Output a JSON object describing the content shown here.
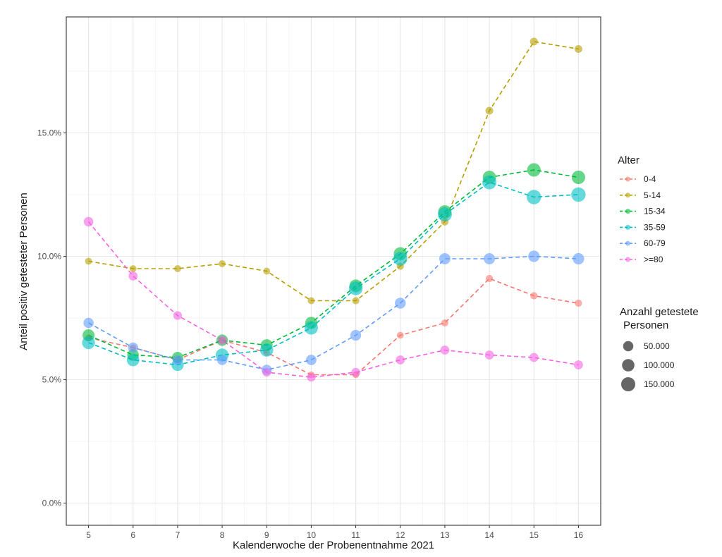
{
  "chart_data": {
    "type": "line",
    "xlabel": "Kalenderwoche der Probenentnahme 2021",
    "ylabel": "Anteil positiv getesteter Personen",
    "x": [
      5,
      6,
      7,
      8,
      9,
      10,
      11,
      12,
      13,
      14,
      15,
      16
    ],
    "xlim": [
      4.5,
      16.5
    ],
    "ylim": [
      -0.9,
      19.7
    ],
    "yticks": [
      0.0,
      5.0,
      10.0,
      15.0
    ],
    "ytick_labels": [
      "0.0%",
      "5.0%",
      "10.0%",
      "15.0%"
    ],
    "grid": true,
    "legend_position": "right",
    "series": [
      {
        "name": "0-4",
        "color": "#f8766d",
        "values": [
          6.7,
          6.3,
          5.8,
          6.6,
          6.1,
          5.2,
          5.2,
          6.8,
          7.3,
          9.1,
          8.4,
          8.1
        ],
        "tested": [
          6000,
          5000,
          5000,
          5000,
          5000,
          5000,
          6000,
          7000,
          8000,
          9000,
          9000,
          9000
        ]
      },
      {
        "name": "5-14",
        "color": "#b79f00",
        "values": [
          9.8,
          9.5,
          9.5,
          9.7,
          9.4,
          8.2,
          8.2,
          9.6,
          11.4,
          15.9,
          18.7,
          18.4
        ],
        "tested": [
          7000,
          7000,
          7000,
          7000,
          7000,
          8000,
          9000,
          10000,
          12000,
          15000,
          15000,
          15000
        ]
      },
      {
        "name": "15-34",
        "color": "#00ba38",
        "values": [
          6.8,
          6.0,
          5.9,
          6.6,
          6.4,
          7.3,
          8.8,
          10.1,
          11.8,
          13.2,
          13.5,
          13.2
        ],
        "tested": [
          90000,
          80000,
          70000,
          75000,
          85000,
          95000,
          110000,
          120000,
          125000,
          125000,
          130000,
          130000
        ]
      },
      {
        "name": "35-59",
        "color": "#00bfc4",
        "values": [
          6.5,
          5.8,
          5.6,
          6.0,
          6.2,
          7.1,
          8.7,
          9.9,
          11.7,
          13.0,
          12.4,
          12.5
        ],
        "tested": [
          115000,
          105000,
          95000,
          115000,
          120000,
          130000,
          140000,
          145000,
          150000,
          150000,
          160000,
          160000
        ]
      },
      {
        "name": "60-79",
        "color": "#619cff",
        "values": [
          7.3,
          6.3,
          5.8,
          5.8,
          5.4,
          5.8,
          6.8,
          8.1,
          9.9,
          9.9,
          10.0,
          9.9
        ],
        "tested": [
          50000,
          50000,
          45000,
          50000,
          50000,
          55000,
          60000,
          65000,
          70000,
          70000,
          75000,
          75000
        ]
      },
      {
        "name": ">=80",
        "color": "#f564e3",
        "values": [
          11.4,
          9.2,
          7.6,
          6.6,
          5.3,
          5.1,
          5.3,
          5.8,
          6.2,
          6.0,
          5.9,
          5.6
        ],
        "tested": [
          40000,
          30000,
          25000,
          25000,
          25000,
          25000,
          28000,
          30000,
          30000,
          30000,
          30000,
          30000
        ]
      }
    ],
    "legend": {
      "color_title": "Alter",
      "size_title_lines": [
        "Anzahl getestete",
        "Personen"
      ],
      "size_entries": [
        {
          "label": "50.000",
          "value": 50000
        },
        {
          "label": "100.000",
          "value": 100000
        },
        {
          "label": "150.000",
          "value": 150000
        }
      ]
    }
  }
}
